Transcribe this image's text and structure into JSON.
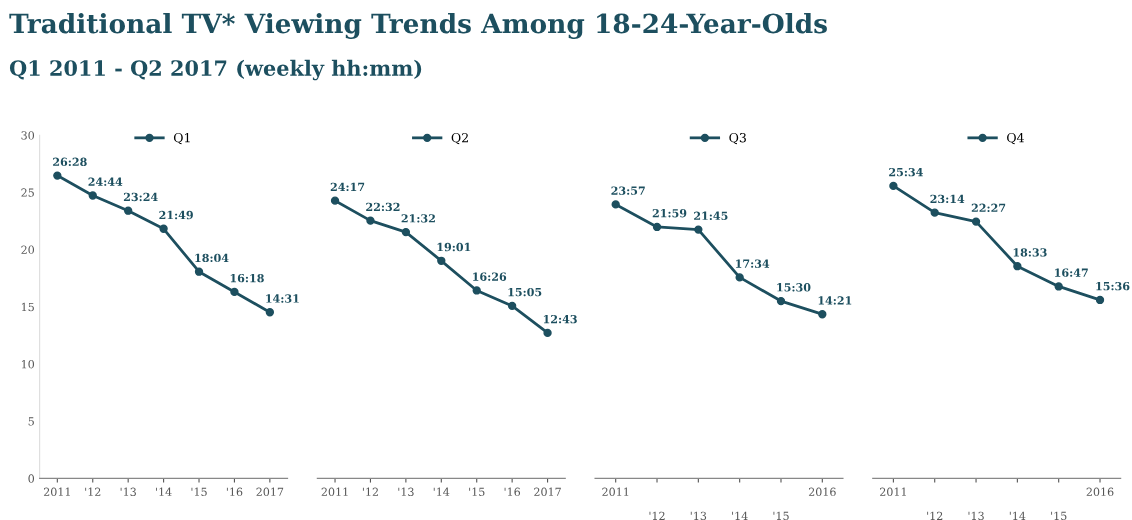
{
  "chart_data": [
    {
      "type": "line",
      "title": "Traditional TV* Viewing Trends Among 18-24-Year-Olds",
      "subtitle": "Q1 2011 - Q2 2017 (weekly hh:mm)",
      "categories": [
        "2011",
        "'12",
        "'13",
        "'14",
        "'15",
        "'16",
        "2017"
      ],
      "series": [
        {
          "name": "Q1",
          "color": "#1d4f5f",
          "values": [
            26.47,
            24.73,
            23.4,
            21.82,
            18.07,
            16.3,
            14.52
          ],
          "value_labels": [
            "26:28",
            "24:44",
            "23:24",
            "21:49",
            "18:04",
            "16:18",
            "14:31"
          ]
        }
      ],
      "ylim": [
        0,
        30
      ],
      "yticks": [
        0,
        5,
        10,
        15,
        20,
        25,
        30
      ],
      "marker": "circle",
      "legend": "top"
    },
    {
      "type": "line",
      "categories": [
        "2011",
        "'12",
        "'13",
        "'14",
        "'15",
        "'16",
        "2017"
      ],
      "series": [
        {
          "name": "Q2",
          "color": "#1d4f5f",
          "values": [
            24.28,
            22.53,
            21.53,
            19.02,
            16.43,
            15.08,
            12.72
          ],
          "value_labels": [
            "24:17",
            "22:32",
            "21:32",
            "19:01",
            "16:26",
            "15:05",
            "12:43"
          ]
        }
      ],
      "ylim": [
        0,
        30
      ],
      "yticks": [
        0,
        5,
        10,
        15,
        20,
        25,
        30
      ],
      "tick_labels": "x",
      "marker": "circle",
      "legend": "top"
    },
    {
      "type": "line",
      "categories": [
        "2011",
        "'12",
        "'13",
        "'14",
        "'15",
        "2016"
      ],
      "series": [
        {
          "name": "Q3",
          "color": "#1d4f5f",
          "values": [
            23.95,
            21.98,
            21.75,
            17.57,
            15.5,
            14.35
          ],
          "value_labels": [
            "23:57",
            "21:59",
            "21:45",
            "17:34",
            "15:30",
            "14:21"
          ]
        }
      ],
      "ylim": [
        0,
        30
      ],
      "yticks": [
        0,
        5,
        10,
        15,
        20,
        25,
        30
      ],
      "tick_labels": "x",
      "marker": "circle",
      "legend": "top"
    },
    {
      "type": "line",
      "categories": [
        "2011",
        "'12",
        "'13",
        "'14",
        "'15",
        "2016"
      ],
      "series": [
        {
          "name": "Q4",
          "color": "#1d4f5f",
          "values": [
            25.57,
            23.23,
            22.45,
            18.55,
            16.78,
            15.6
          ],
          "value_labels": [
            "25:34",
            "23:14",
            "22:27",
            "18:33",
            "16:47",
            "15:36"
          ]
        }
      ],
      "ylim": [
        0,
        30
      ],
      "yticks": [
        0,
        5,
        10,
        15,
        20,
        25,
        30
      ],
      "tick_labels": "x",
      "marker": "circle",
      "legend": "top"
    }
  ]
}
